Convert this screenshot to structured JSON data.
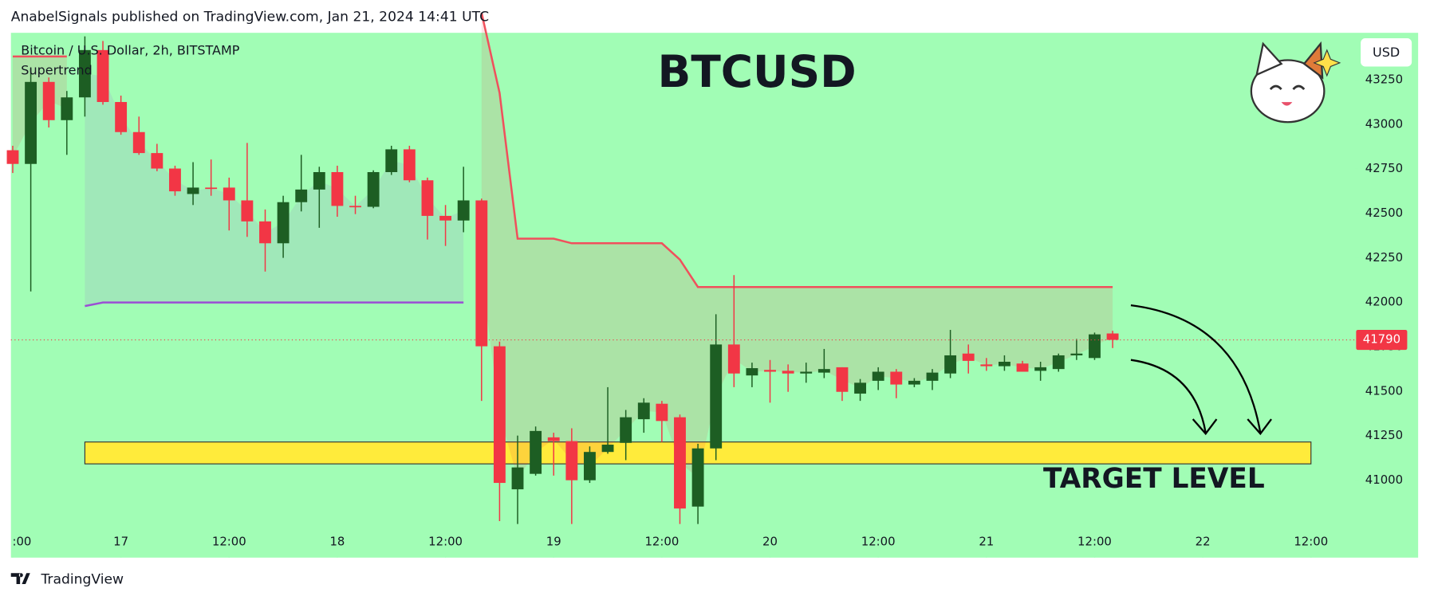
{
  "chart_data": {
    "type": "candlestick",
    "header": "AnabelSignals published on TradingView.com, Jan 21, 2024 14:41 UTC",
    "title": "BTCUSD",
    "symbol": "Bitcoin / U.S. Dollar, 2h, BITSTAMP",
    "indicator": "Supertrend",
    "currency": "USD",
    "footer": "TradingView",
    "up_color": "#1d5e23",
    "down_color": "#f23645",
    "background": "#a1fdb5",
    "open": [
      42856,
      42779,
      43240,
      43025,
      43153,
      43419,
      43127,
      42958,
      42840,
      42753,
      42610,
      42646,
      42646,
      42574,
      42456,
      42333,
      42564,
      42635,
      42733,
      42543,
      42538,
      42733,
      42861,
      42687,
      42487,
      42461,
      42574,
      41754,
      40950,
      41037,
      41242,
      41221,
      41001,
      41160,
      41211,
      41344,
      41431,
      41355,
      40853,
      41180,
      41764,
      41590,
      41621,
      41616,
      41601,
      41606,
      41636,
      41488,
      41560,
      41611,
      41539,
      41560,
      41601,
      41713,
      41652,
      41642,
      41657,
      41616,
      41626,
      41703,
      41688,
      41826
    ],
    "high": [
      42881,
      43317,
      43265,
      43189,
      43496,
      43470,
      43163,
      43045,
      42892,
      42769,
      42789,
      42804,
      42702,
      42897,
      42523,
      42600,
      42830,
      42763,
      42769,
      42600,
      42743,
      42881,
      42881,
      42702,
      42548,
      42763,
      42584,
      41780,
      41252,
      41303,
      41268,
      41293,
      41191,
      41524,
      41396,
      41462,
      41447,
      41370,
      41206,
      41934,
      42154,
      41662,
      41677,
      41652,
      41662,
      41739,
      41636,
      41570,
      41636,
      41626,
      41575,
      41626,
      41846,
      41764,
      41688,
      41703,
      41672,
      41667,
      41713,
      41795,
      41831,
      41841
    ],
    "low": [
      42728,
      42062,
      42984,
      42830,
      43045,
      43112,
      42943,
      42830,
      42738,
      42600,
      42548,
      42600,
      42405,
      42369,
      42174,
      42251,
      42512,
      42420,
      42482,
      42497,
      42530,
      42717,
      42676,
      42354,
      42318,
      42395,
      41447,
      40771,
      40755,
      41027,
      41027,
      40755,
      40986,
      41150,
      41114,
      41268,
      41216,
      40755,
      40755,
      41114,
      41524,
      41524,
      41437,
      41498,
      41549,
      41575,
      41447,
      41447,
      41508,
      41462,
      41524,
      41508,
      41575,
      41601,
      41616,
      41616,
      41611,
      41560,
      41611,
      41677,
      41677,
      41744
    ],
    "close": [
      42779,
      43240,
      43025,
      43153,
      43419,
      43127,
      42958,
      42840,
      42753,
      42625,
      42646,
      42641,
      42574,
      42456,
      42333,
      42564,
      42635,
      42733,
      42543,
      42538,
      42733,
      42861,
      42687,
      42487,
      42461,
      42574,
      41754,
      40986,
      41073,
      41278,
      41221,
      41001,
      41160,
      41201,
      41355,
      41437,
      41334,
      40842,
      41180,
      41764,
      41601,
      41631,
      41611,
      41601,
      41611,
      41626,
      41498,
      41549,
      41611,
      41539,
      41560,
      41606,
      41703,
      41672,
      41642,
      41667,
      41611,
      41636,
      41703,
      41713,
      41821,
      41790
    ],
    "supertrend": {
      "down_color": "#f0505c",
      "up_color": "#9b4fd4",
      "down": [
        43383,
        43383,
        43383,
        43383,
        null,
        null,
        null,
        null,
        null,
        null,
        null,
        null,
        null,
        null,
        null,
        null,
        null,
        null,
        null,
        null,
        null,
        null,
        null,
        null,
        null,
        null,
        43629,
        43178,
        42359,
        42359,
        42359,
        42333,
        42333,
        42333,
        42333,
        42333,
        42333,
        42241,
        42087,
        42087,
        42087,
        42087,
        42087,
        42087,
        42087,
        42087,
        42087,
        42087,
        42087,
        42087,
        42087,
        42087,
        42087,
        42087,
        42087,
        42087,
        42087,
        42087,
        42087,
        42087,
        42087,
        42087
      ],
      "up": [
        null,
        null,
        null,
        null,
        41980,
        42000,
        42000,
        42000,
        42000,
        42000,
        42000,
        42000,
        42000,
        42000,
        42000,
        42000,
        42000,
        42000,
        42000,
        42000,
        42000,
        42000,
        42000,
        42000,
        42000,
        42000,
        null,
        null,
        null,
        null,
        null,
        null,
        null,
        null,
        null,
        null,
        null,
        null,
        null,
        null,
        null,
        null,
        null,
        null,
        null,
        null,
        null,
        null,
        null,
        null,
        null,
        null,
        null,
        null,
        null,
        null,
        null,
        null,
        null,
        null,
        null,
        null
      ]
    },
    "target": {
      "label": "TARGET LEVEL",
      "low": 41093,
      "high": 41216,
      "from": 4,
      "to": 72,
      "color": "#ffeb3b"
    },
    "xlim": [
      -0.1,
      74.15
    ],
    "xticks": [
      {
        "value": 0,
        "label": ":00"
      },
      {
        "value": 6,
        "label": "17"
      },
      {
        "value": 12,
        "label": "12:00"
      },
      {
        "value": 18,
        "label": "18"
      },
      {
        "value": 24,
        "label": "12:00"
      },
      {
        "value": 30,
        "label": "19"
      },
      {
        "value": 36,
        "label": "12:00"
      },
      {
        "value": 42,
        "label": "20"
      },
      {
        "value": 48,
        "label": "12:00"
      },
      {
        "value": 54,
        "label": "21"
      },
      {
        "value": 60,
        "label": "12:00"
      },
      {
        "value": 66,
        "label": "22"
      },
      {
        "value": 72,
        "label": "12:00"
      }
    ],
    "ylim": [
      40566,
      43516
    ],
    "yticks": [
      41000,
      41250,
      41500,
      41750,
      42000,
      42250,
      42500,
      42750,
      43000,
      43250
    ]
  }
}
